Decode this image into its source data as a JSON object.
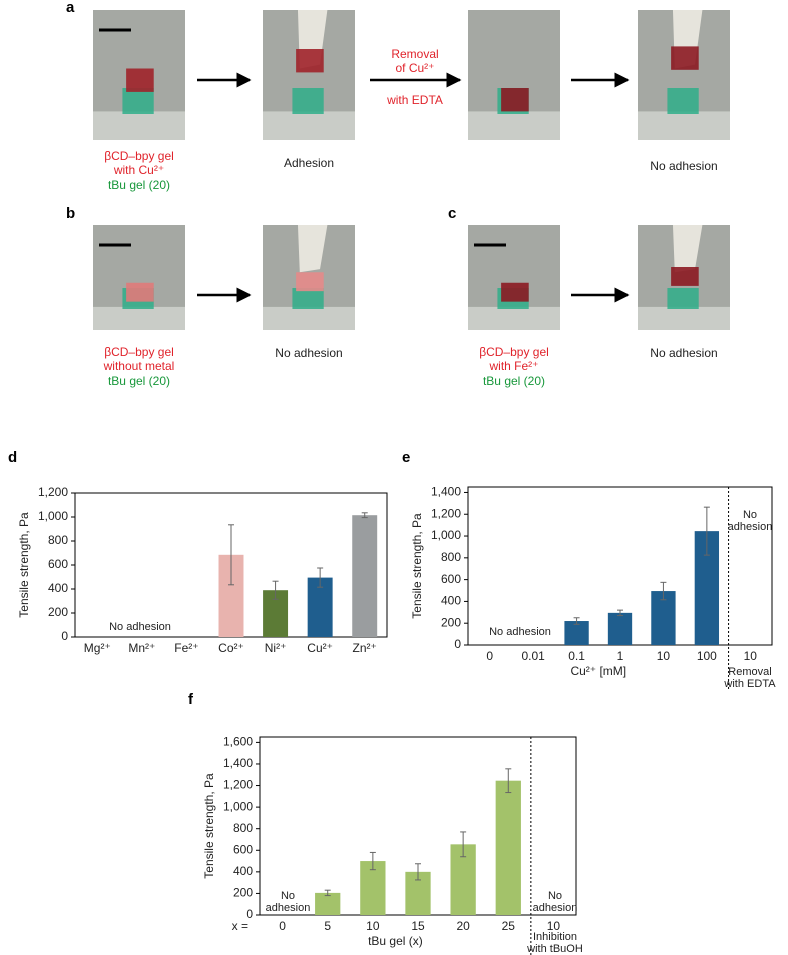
{
  "panels": {
    "a": {
      "label": "a",
      "photo1": [
        "βCD–bpy gel",
        "with Cu²⁺",
        "tBu gel (20)"
      ],
      "photo2": [
        "Adhesion"
      ],
      "arrow2": [
        "Removal",
        "of Cu²⁺",
        "with EDTA"
      ],
      "photo4": [
        "No adhesion"
      ]
    },
    "b": {
      "label": "b",
      "photo1": [
        "βCD–bpy gel",
        "without metal",
        "tBu gel (20)"
      ],
      "photo2": [
        "No adhesion"
      ]
    },
    "c": {
      "label": "c",
      "photo1": [
        "βCD–bpy gel",
        "with Fe²⁺",
        "tBu gel (20)"
      ],
      "photo2": [
        "No adhesion"
      ]
    }
  },
  "chart_data": [
    {
      "type": "bar",
      "label": "d",
      "ylabel": "Tensile strength, Pa",
      "categories": [
        "Mg²⁺",
        "Mn²⁺",
        "Fe²⁺",
        "Co²⁺",
        "Ni²⁺",
        "Cu²⁺",
        "Zn²⁺"
      ],
      "values": [
        null,
        null,
        null,
        685,
        390,
        495,
        1015
      ],
      "errors": [
        null,
        null,
        null,
        250,
        75,
        80,
        20
      ],
      "colors": [
        "#e8b3ae",
        "#e8b3ae",
        "#e8b3ae",
        "#e8b3ae",
        "#5c7b36",
        "#1f5e8e",
        "#9a9d9f"
      ],
      "ylim": [
        0,
        1200
      ],
      "yticks": [
        0,
        200,
        400,
        600,
        800,
        {
          "value": 1000,
          "label": "1,000"
        },
        {
          "value": 1200,
          "label": "1,200"
        }
      ],
      "annotations": [
        [
          "No adhesion"
        ]
      ]
    },
    {
      "type": "bar",
      "label": "e",
      "ylabel": "Tensile strength, Pa",
      "xlabel": "Cu²⁺ [mM]",
      "categories": [
        "0",
        "0.01",
        "0.1",
        "1",
        "10",
        "100",
        "10"
      ],
      "values": [
        null,
        null,
        220,
        295,
        495,
        1045,
        null
      ],
      "errors": [
        null,
        null,
        30,
        25,
        80,
        220,
        null
      ],
      "color": "#1f5e8e",
      "ylim": [
        0,
        1450
      ],
      "yticks": [
        0,
        200,
        400,
        600,
        800,
        {
          "value": 1000,
          "label": "1,000"
        },
        {
          "value": 1200,
          "label": "1,200"
        },
        {
          "value": 1400,
          "label": "1,400"
        }
      ],
      "divider": true,
      "annotations": [
        [
          "No adhesion"
        ],
        [
          "No",
          "adhesion"
        ],
        [
          "Removal",
          "with EDTA"
        ]
      ]
    },
    {
      "type": "bar",
      "label": "f",
      "ylabel": "Tensile strength, Pa",
      "xlabel": "tBu gel (x)",
      "xprefix": "x =",
      "categories": [
        "0",
        "5",
        "10",
        "15",
        "20",
        "25",
        "10"
      ],
      "values": [
        null,
        205,
        500,
        400,
        655,
        1245,
        null
      ],
      "errors": [
        null,
        25,
        80,
        75,
        115,
        110,
        null
      ],
      "color": "#a3c26a",
      "ylim": [
        0,
        1650
      ],
      "yticks": [
        0,
        200,
        400,
        600,
        800,
        {
          "value": 1000,
          "label": "1,000"
        },
        {
          "value": 1200,
          "label": "1,200"
        },
        {
          "value": 1400,
          "label": "1,400"
        },
        {
          "value": 1600,
          "label": "1,600"
        }
      ],
      "divider": true,
      "annotations": [
        [
          "No",
          "adhesion"
        ],
        [
          "No",
          "adhesion"
        ],
        [
          "Inhibition",
          "with tBuOH"
        ]
      ]
    }
  ]
}
